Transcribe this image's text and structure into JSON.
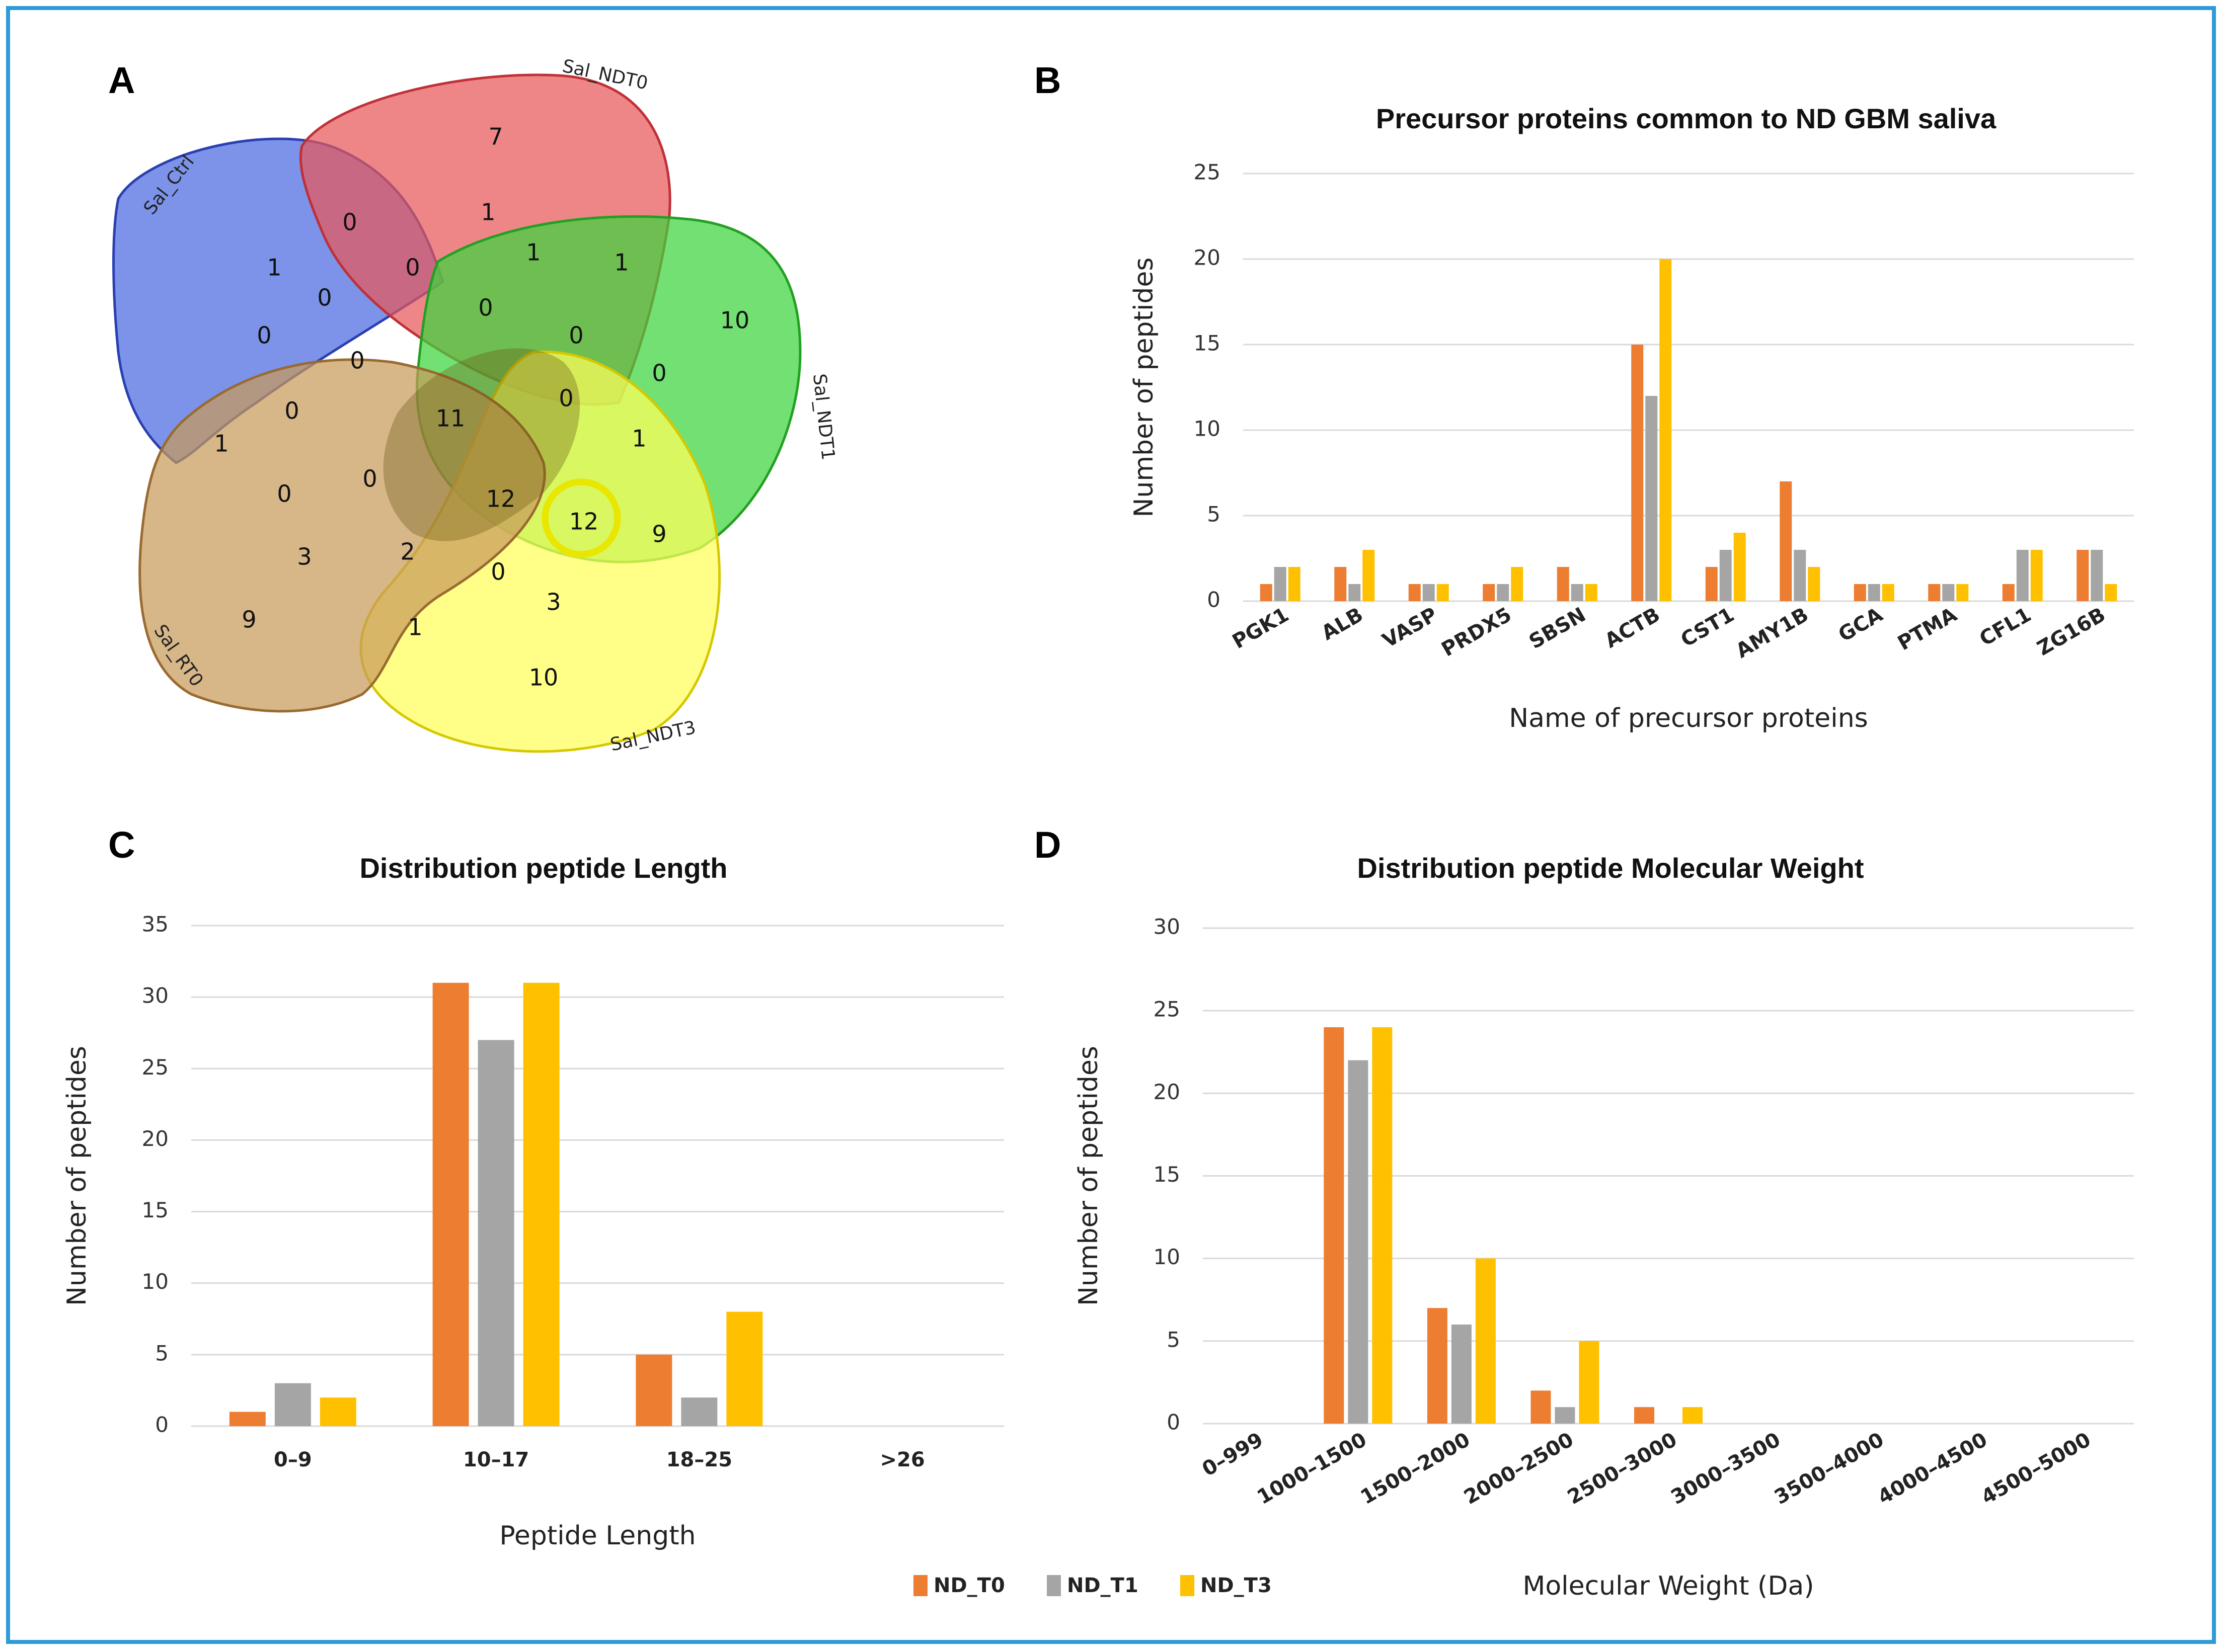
{
  "colors": {
    "frame": "#2e9bd6",
    "ND_T0": "#ed7d31",
    "ND_T1": "#a5a5a5",
    "ND_T3": "#ffc000",
    "highlight": "#e9e600"
  },
  "panels": {
    "a": "A",
    "b": "B",
    "c": "C",
    "d": "D"
  },
  "venn": {
    "sets": [
      {
        "name": "Sal_Ctrl",
        "color": "#4a69e0"
      },
      {
        "name": "Sal_NDT0",
        "color": "#e8585a"
      },
      {
        "name": "Sal_NDT1",
        "color": "#3dd43d"
      },
      {
        "name": "Sal_NDT3",
        "color": "#ffff5a"
      },
      {
        "name": "Sal_RT0",
        "color": "#c89a5a"
      }
    ],
    "regions": [
      "7",
      "0",
      "1",
      "1",
      "1",
      "1",
      "0",
      "0",
      "10",
      "0",
      "0",
      "0",
      "0",
      "0",
      "0",
      "0",
      "11",
      "1",
      "1",
      "0",
      "0",
      "12",
      "12",
      "9",
      "3",
      "2",
      "0",
      "3",
      "9",
      "1",
      "10"
    ],
    "highlighted": "12"
  },
  "chart_data": [
    {
      "type": "bar",
      "title": "Precursor proteins common to ND GBM saliva",
      "xlabel": "Name of precursor proteins",
      "ylabel": "Number of peptides",
      "ylim": [
        0,
        25
      ],
      "yticks": [
        "0",
        "5",
        "10",
        "15",
        "20",
        "25"
      ],
      "categories": [
        "PGK1",
        "ALB",
        "VASP",
        "PRDX5",
        "SBSN",
        "ACTB",
        "CST1",
        "AMY1B",
        "GCA",
        "PTMA",
        "CFL1",
        "ZG16B"
      ],
      "series": [
        {
          "name": "ND_T0",
          "values": [
            1,
            2,
            1,
            1,
            2,
            15,
            2,
            7,
            1,
            1,
            1,
            3
          ]
        },
        {
          "name": "ND_T1",
          "values": [
            2,
            1,
            1,
            1,
            1,
            12,
            3,
            3,
            1,
            1,
            3,
            3
          ]
        },
        {
          "name": "ND_T3",
          "values": [
            2,
            3,
            1,
            2,
            1,
            20,
            4,
            2,
            1,
            1,
            3,
            1
          ]
        }
      ]
    },
    {
      "type": "bar",
      "title": "Distribution peptide Length",
      "xlabel": "Peptide Length",
      "ylabel": "Number of peptides",
      "ylim": [
        0,
        35
      ],
      "yticks": [
        "0",
        "5",
        "10",
        "15",
        "20",
        "25",
        "30",
        "35"
      ],
      "categories": [
        "0–9",
        "10–17",
        "18–25",
        ">26"
      ],
      "series": [
        {
          "name": "ND_T0",
          "values": [
            1,
            31,
            5,
            0
          ]
        },
        {
          "name": "ND_T1",
          "values": [
            3,
            27,
            2,
            0
          ]
        },
        {
          "name": "ND_T3",
          "values": [
            2,
            31,
            8,
            0
          ]
        }
      ]
    },
    {
      "type": "bar",
      "title": "Distribution peptide Molecular Weight",
      "xlabel": "Molecular Weight (Da)",
      "ylabel": "Number of peptides",
      "ylim": [
        0,
        30
      ],
      "yticks": [
        "0",
        "5",
        "10",
        "15",
        "20",
        "25",
        "30"
      ],
      "categories": [
        "0–999",
        "1000–1500",
        "1500–2000",
        "2000–2500",
        "2500–3000",
        "3000–3500",
        "3500–4000",
        "4000–4500",
        "4500–5000"
      ],
      "series": [
        {
          "name": "ND_T0",
          "values": [
            0,
            24,
            7,
            2,
            1,
            0,
            0,
            0,
            0
          ]
        },
        {
          "name": "ND_T1",
          "values": [
            0,
            22,
            6,
            1,
            0,
            0,
            0,
            0,
            0
          ]
        },
        {
          "name": "ND_T3",
          "values": [
            0,
            24,
            10,
            5,
            1,
            0,
            0,
            0,
            0
          ]
        }
      ]
    }
  ],
  "legend": [
    "ND_T0",
    "ND_T1",
    "ND_T3"
  ]
}
